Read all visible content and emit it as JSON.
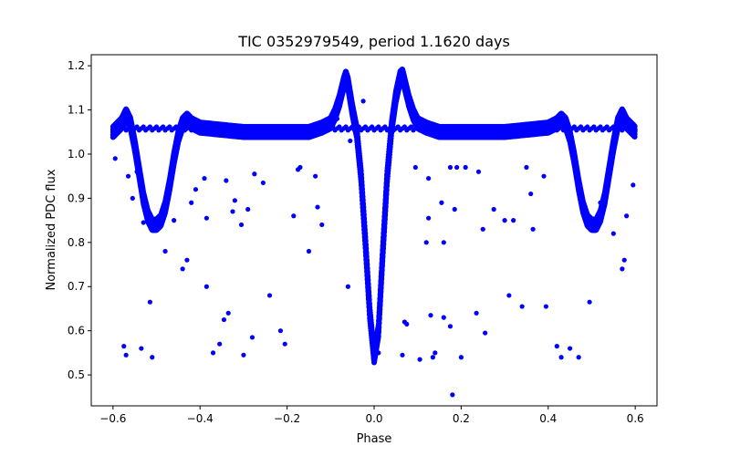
{
  "chart_data": {
    "type": "scatter",
    "title": "TIC 0352979549, period 1.1620 days",
    "xlabel": "Phase",
    "ylabel": "Normalized PDC flux",
    "xlim": [
      -0.65,
      0.65
    ],
    "ylim": [
      0.43,
      1.225
    ],
    "xticks": [
      -0.6,
      -0.4,
      -0.2,
      0.0,
      0.2,
      0.4,
      0.6
    ],
    "xtick_labels": [
      "−0.6",
      "−0.4",
      "−0.2",
      "0.0",
      "0.2",
      "0.4",
      "0.6"
    ],
    "yticks": [
      0.5,
      0.6,
      0.7,
      0.8,
      0.9,
      1.0,
      1.1,
      1.2
    ],
    "ytick_labels": [
      "0.5",
      "0.6",
      "0.7",
      "0.8",
      "0.9",
      "1.0",
      "1.1",
      "1.2"
    ],
    "grid": false,
    "legend": "none",
    "marker_color": "#0000ff",
    "series": [
      {
        "curve_points": [
          [
            -0.6,
            1.05
          ],
          [
            -0.58,
            1.07
          ],
          [
            -0.57,
            1.09
          ],
          [
            -0.56,
            1.07
          ],
          [
            -0.55,
            1.02
          ],
          [
            -0.54,
            0.96
          ],
          [
            -0.53,
            0.9
          ],
          [
            -0.52,
            0.86
          ],
          [
            -0.51,
            0.84
          ],
          [
            -0.5,
            0.84
          ],
          [
            -0.49,
            0.85
          ],
          [
            -0.48,
            0.88
          ],
          [
            -0.47,
            0.93
          ],
          [
            -0.46,
            0.99
          ],
          [
            -0.45,
            1.04
          ],
          [
            -0.44,
            1.07
          ],
          [
            -0.43,
            1.08
          ],
          [
            -0.42,
            1.07
          ],
          [
            -0.4,
            1.06
          ],
          [
            -0.35,
            1.055
          ],
          [
            -0.3,
            1.05
          ],
          [
            -0.25,
            1.05
          ],
          [
            -0.2,
            1.05
          ],
          [
            -0.15,
            1.05
          ],
          [
            -0.12,
            1.06
          ],
          [
            -0.1,
            1.07
          ],
          [
            -0.09,
            1.09
          ],
          [
            -0.08,
            1.12
          ],
          [
            -0.07,
            1.16
          ],
          [
            -0.065,
            1.175
          ],
          [
            -0.06,
            1.16
          ],
          [
            -0.05,
            1.1
          ],
          [
            -0.04,
            1.05
          ],
          [
            -0.03,
            0.95
          ],
          [
            -0.02,
            0.8
          ],
          [
            -0.01,
            0.64
          ],
          [
            0.0,
            0.54
          ],
          [
            0.01,
            0.6
          ],
          [
            0.02,
            0.78
          ],
          [
            0.03,
            0.95
          ],
          [
            0.04,
            1.06
          ],
          [
            0.05,
            1.13
          ],
          [
            0.06,
            1.175
          ],
          [
            0.065,
            1.18
          ],
          [
            0.07,
            1.16
          ],
          [
            0.08,
            1.12
          ],
          [
            0.09,
            1.09
          ],
          [
            0.1,
            1.07
          ],
          [
            0.12,
            1.06
          ],
          [
            0.15,
            1.05
          ],
          [
            0.2,
            1.05
          ],
          [
            0.25,
            1.05
          ],
          [
            0.3,
            1.05
          ],
          [
            0.35,
            1.055
          ],
          [
            0.4,
            1.06
          ],
          [
            0.42,
            1.07
          ],
          [
            0.43,
            1.08
          ],
          [
            0.44,
            1.07
          ],
          [
            0.45,
            1.04
          ],
          [
            0.46,
            0.99
          ],
          [
            0.47,
            0.93
          ],
          [
            0.48,
            0.88
          ],
          [
            0.49,
            0.85
          ],
          [
            0.5,
            0.84
          ],
          [
            0.51,
            0.84
          ],
          [
            0.52,
            0.86
          ],
          [
            0.53,
            0.9
          ],
          [
            0.54,
            0.96
          ],
          [
            0.55,
            1.02
          ],
          [
            0.56,
            1.07
          ],
          [
            0.57,
            1.09
          ],
          [
            0.58,
            1.07
          ],
          [
            0.6,
            1.05
          ]
        ],
        "band_half_width": 0.012,
        "baseline_segment": {
          "x": [
            -0.6,
            0.6
          ],
          "y": 1.058
        },
        "outliers": [
          [
            -0.595,
            0.99
          ],
          [
            -0.575,
            0.565
          ],
          [
            -0.57,
            0.545
          ],
          [
            -0.565,
            0.95
          ],
          [
            -0.555,
            0.9
          ],
          [
            -0.545,
            0.96
          ],
          [
            -0.535,
            0.56
          ],
          [
            -0.53,
            0.845
          ],
          [
            -0.515,
            0.665
          ],
          [
            -0.51,
            0.54
          ],
          [
            -0.48,
            0.78
          ],
          [
            -0.46,
            0.85
          ],
          [
            -0.44,
            0.74
          ],
          [
            -0.43,
            0.76
          ],
          [
            -0.42,
            0.89
          ],
          [
            -0.41,
            0.92
          ],
          [
            -0.39,
            0.945
          ],
          [
            -0.385,
            0.7
          ],
          [
            -0.385,
            0.855
          ],
          [
            -0.37,
            0.55
          ],
          [
            -0.355,
            0.57
          ],
          [
            -0.345,
            0.625
          ],
          [
            -0.34,
            0.94
          ],
          [
            -0.335,
            0.64
          ],
          [
            -0.325,
            0.87
          ],
          [
            -0.32,
            0.895
          ],
          [
            -0.305,
            0.84
          ],
          [
            -0.3,
            0.545
          ],
          [
            -0.29,
            0.875
          ],
          [
            -0.28,
            0.585
          ],
          [
            -0.275,
            0.955
          ],
          [
            -0.255,
            0.935
          ],
          [
            -0.24,
            0.68
          ],
          [
            -0.215,
            0.6
          ],
          [
            -0.205,
            0.57
          ],
          [
            -0.185,
            0.86
          ],
          [
            -0.175,
            0.965
          ],
          [
            -0.17,
            0.97
          ],
          [
            -0.15,
            0.78
          ],
          [
            -0.135,
            0.95
          ],
          [
            -0.13,
            0.88
          ],
          [
            -0.12,
            0.84
          ],
          [
            -0.085,
            1.08
          ],
          [
            -0.06,
            0.7
          ],
          [
            -0.055,
            1.03
          ],
          [
            -0.025,
            1.12
          ],
          [
            0.01,
            0.55
          ],
          [
            0.065,
            0.545
          ],
          [
            0.07,
            0.62
          ],
          [
            0.075,
            0.615
          ],
          [
            0.085,
            1.09
          ],
          [
            0.095,
            0.97
          ],
          [
            0.105,
            0.535
          ],
          [
            0.12,
            0.8
          ],
          [
            0.125,
            0.855
          ],
          [
            0.125,
            0.945
          ],
          [
            0.13,
            0.635
          ],
          [
            0.135,
            0.54
          ],
          [
            0.14,
            0.55
          ],
          [
            0.155,
            0.89
          ],
          [
            0.16,
            0.63
          ],
          [
            0.16,
            0.8
          ],
          [
            0.175,
            0.61
          ],
          [
            0.175,
            0.97
          ],
          [
            0.18,
            0.455
          ],
          [
            0.185,
            0.875
          ],
          [
            0.19,
            0.97
          ],
          [
            0.2,
            0.54
          ],
          [
            0.21,
            0.97
          ],
          [
            0.235,
            0.64
          ],
          [
            0.24,
            0.96
          ],
          [
            0.25,
            0.83
          ],
          [
            0.255,
            0.595
          ],
          [
            0.275,
            0.875
          ],
          [
            0.3,
            0.85
          ],
          [
            0.31,
            0.68
          ],
          [
            0.32,
            0.85
          ],
          [
            0.34,
            0.655
          ],
          [
            0.35,
            0.97
          ],
          [
            0.365,
            0.83
          ],
          [
            0.36,
            0.91
          ],
          [
            0.39,
            0.95
          ],
          [
            0.395,
            0.655
          ],
          [
            0.42,
            0.565
          ],
          [
            0.43,
            0.54
          ],
          [
            0.45,
            0.56
          ],
          [
            0.47,
            0.54
          ],
          [
            0.47,
            0.94
          ],
          [
            0.48,
            0.88
          ],
          [
            0.495,
            0.665
          ],
          [
            0.52,
            0.89
          ],
          [
            0.55,
            0.82
          ],
          [
            0.57,
            0.74
          ],
          [
            0.575,
            0.76
          ],
          [
            0.58,
            0.86
          ],
          [
            0.595,
            0.93
          ]
        ]
      }
    ]
  }
}
